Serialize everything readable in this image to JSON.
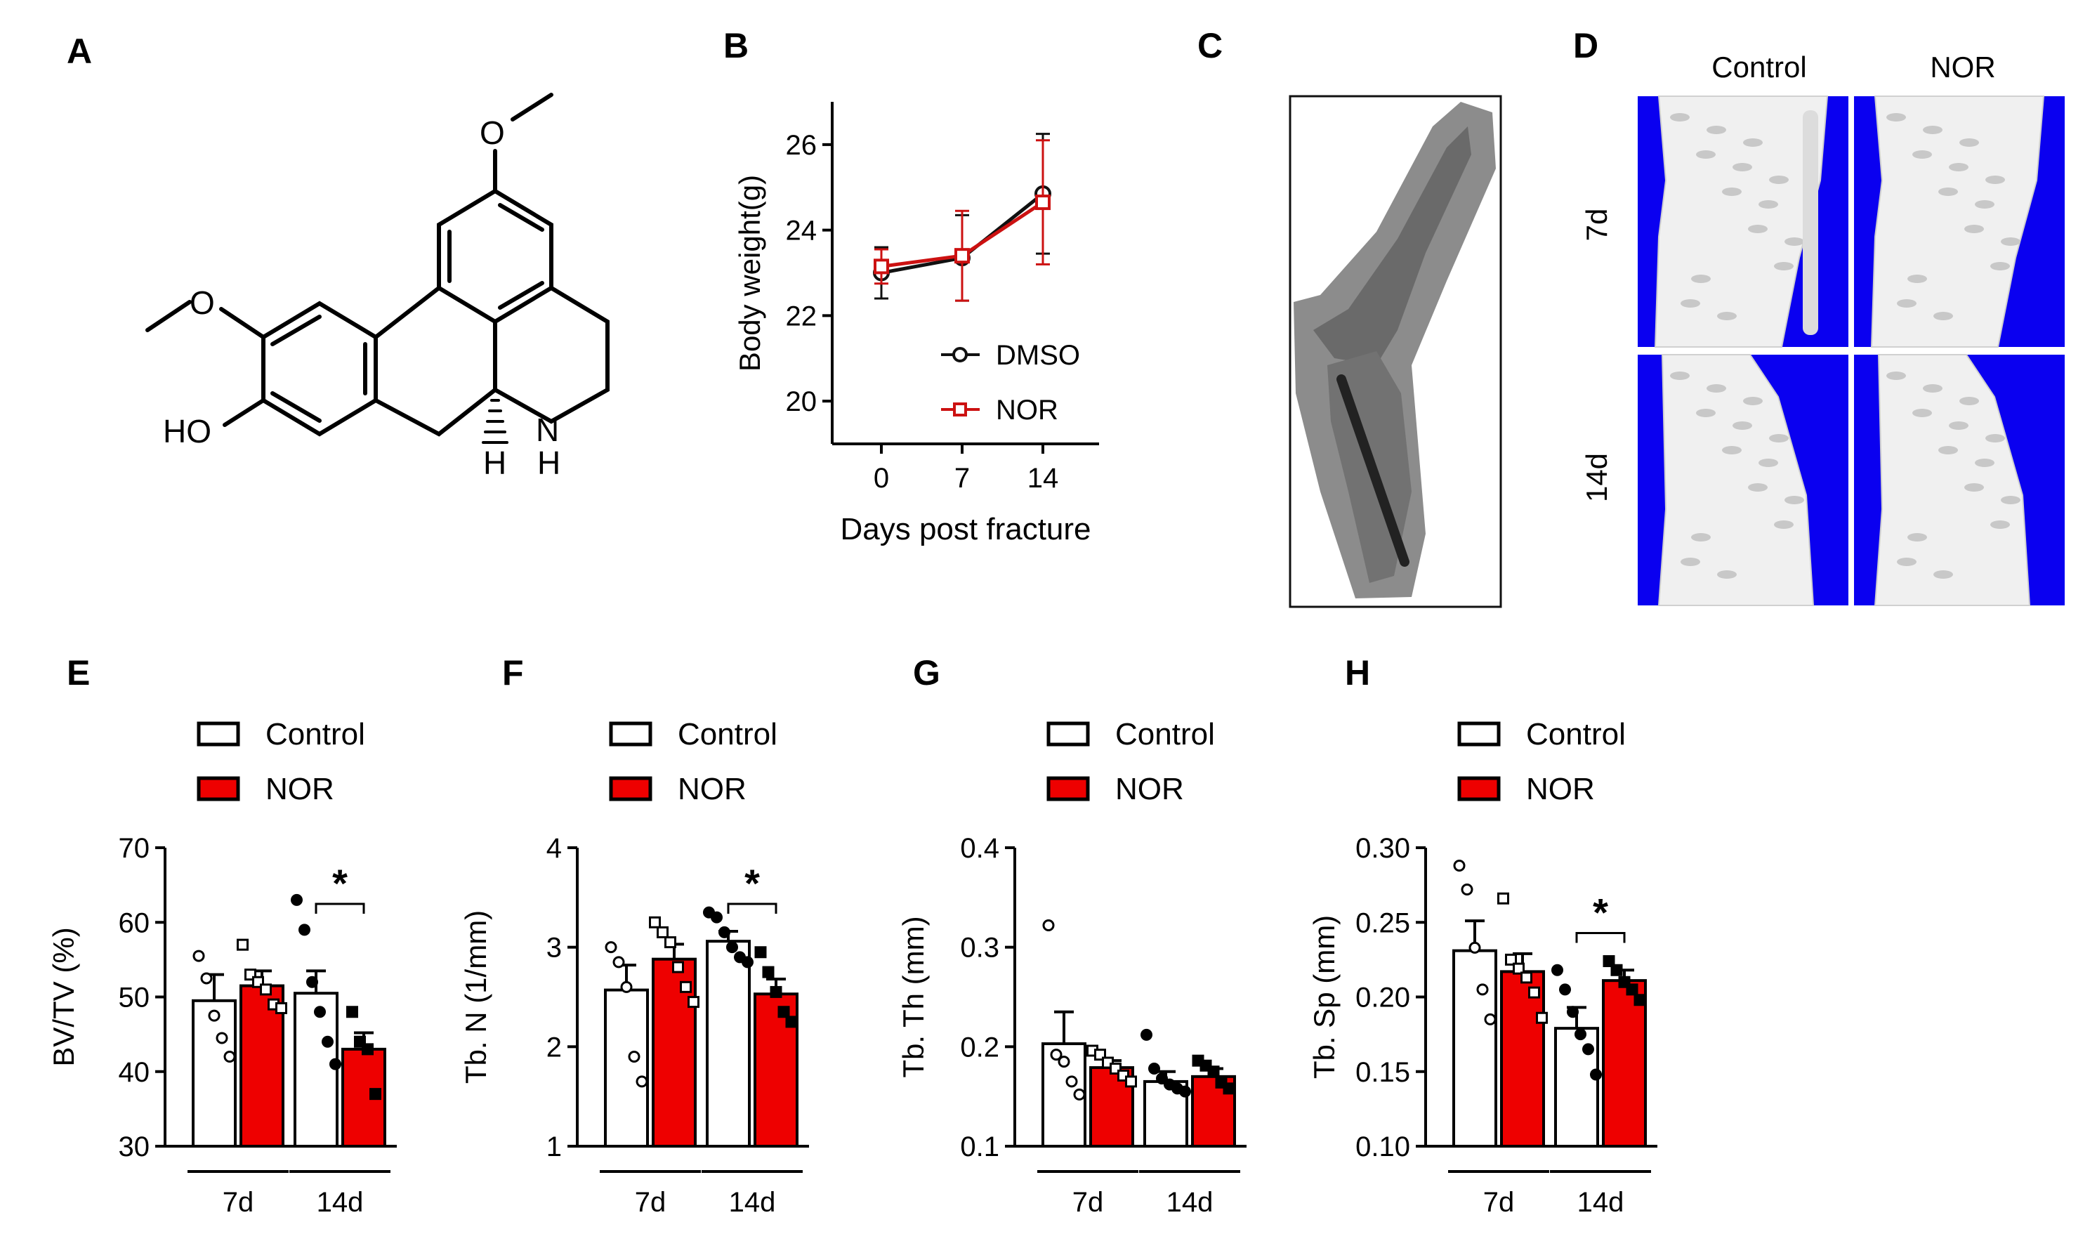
{
  "panel_labels": {
    "A": "A",
    "B": "B",
    "C": "C",
    "D": "D",
    "E": "E",
    "F": "F",
    "G": "G",
    "H": "H"
  },
  "structure": {
    "ho": "HO",
    "nh": "N",
    "h_nh": "H",
    "h_stereo": "H",
    "o_top": "O",
    "o_left": "O"
  },
  "micro_ct": {
    "col_control": "Control",
    "col_nor": "NOR",
    "row_7d": "7d",
    "row_14d": "14d",
    "bg_color": "#0a00f0"
  },
  "colors": {
    "control": "#ffffff",
    "nor": "#ee0000",
    "dmso_line": "#111111",
    "nor_line": "#cc1111"
  },
  "chart_data": [
    {
      "id": "B",
      "type": "line",
      "xlabel": "Days post fracture",
      "ylabel": "Body weight(g)",
      "x": [
        0,
        7,
        14
      ],
      "xticks": [
        "0",
        "7",
        "14"
      ],
      "ylim": [
        19,
        27
      ],
      "yticks": [
        20,
        22,
        24,
        26
      ],
      "series": [
        {
          "name": "DMSO",
          "values": [
            23.0,
            23.35,
            24.85
          ],
          "err": [
            0.6,
            1.0,
            1.4
          ],
          "marker": "circle"
        },
        {
          "name": "NOR",
          "values": [
            23.15,
            23.4,
            24.65
          ],
          "err": [
            0.4,
            1.05,
            1.45
          ],
          "marker": "square"
        }
      ]
    },
    {
      "id": "E",
      "type": "bar",
      "ylabel": "BV/TV (%)",
      "ylim": [
        30,
        70
      ],
      "yticks": [
        30,
        40,
        50,
        60,
        70
      ],
      "groups": [
        "7d",
        "14d"
      ],
      "legend": [
        "Control",
        "NOR"
      ],
      "bars": [
        {
          "group": "7d",
          "series": "Control",
          "mean": 49.5,
          "sem": 3.5,
          "points": [
            55.5,
            52.5,
            47.5,
            44.5,
            42.0
          ]
        },
        {
          "group": "7d",
          "series": "NOR",
          "mean": 51.5,
          "sem": 2.0,
          "points": [
            57.0,
            53.0,
            52.0,
            51.0,
            49.0,
            48.5
          ]
        },
        {
          "group": "14d",
          "series": "Control",
          "mean": 50.5,
          "sem": 3.0,
          "points": [
            63.0,
            59.0,
            52.0,
            48.0,
            44.0,
            41.0
          ]
        },
        {
          "group": "14d",
          "series": "NOR",
          "mean": 43.0,
          "sem": 2.2,
          "points": [
            48.0,
            44.0,
            43.0,
            37.0
          ]
        }
      ],
      "significance": {
        "between": "14d",
        "label": "*"
      }
    },
    {
      "id": "F",
      "type": "bar",
      "ylabel": "Tb. N (1/mm)",
      "ylim": [
        1,
        4
      ],
      "yticks": [
        1,
        2,
        3,
        4
      ],
      "groups": [
        "7d",
        "14d"
      ],
      "legend": [
        "Control",
        "NOR"
      ],
      "bars": [
        {
          "group": "7d",
          "series": "Control",
          "mean": 2.57,
          "sem": 0.25,
          "points": [
            3.0,
            2.85,
            2.6,
            1.9,
            1.65
          ]
        },
        {
          "group": "7d",
          "series": "NOR",
          "mean": 2.88,
          "sem": 0.15,
          "points": [
            3.25,
            3.15,
            3.05,
            2.8,
            2.6,
            2.45
          ]
        },
        {
          "group": "14d",
          "series": "Control",
          "mean": 3.06,
          "sem": 0.1,
          "points": [
            3.35,
            3.3,
            3.15,
            3.0,
            2.9,
            2.85
          ]
        },
        {
          "group": "14d",
          "series": "NOR",
          "mean": 2.53,
          "sem": 0.15,
          "points": [
            2.95,
            2.75,
            2.55,
            2.35,
            2.25
          ]
        }
      ],
      "significance": {
        "between": "14d",
        "label": "*"
      }
    },
    {
      "id": "G",
      "type": "bar",
      "ylabel": "Tb. Th (mm)",
      "ylim": [
        0.1,
        0.4
      ],
      "yticks": [
        "0.1",
        "0.2",
        "0.3",
        "0.4"
      ],
      "groups": [
        "7d",
        "14d"
      ],
      "legend": [
        "Control",
        "NOR"
      ],
      "bars": [
        {
          "group": "7d",
          "series": "Control",
          "mean": 0.203,
          "sem": 0.032,
          "points": [
            0.322,
            0.192,
            0.185,
            0.165,
            0.152
          ]
        },
        {
          "group": "7d",
          "series": "NOR",
          "mean": 0.179,
          "sem": 0.007,
          "points": [
            0.196,
            0.192,
            0.184,
            0.178,
            0.171,
            0.165
          ]
        },
        {
          "group": "14d",
          "series": "Control",
          "mean": 0.165,
          "sem": 0.01,
          "points": [
            0.212,
            0.178,
            0.168,
            0.162,
            0.158,
            0.155
          ]
        },
        {
          "group": "14d",
          "series": "NOR",
          "mean": 0.17,
          "sem": 0.008,
          "points": [
            0.186,
            0.181,
            0.175,
            0.164,
            0.158
          ]
        }
      ],
      "significance": null
    },
    {
      "id": "H",
      "type": "bar",
      "ylabel": "Tb. Sp (mm)",
      "ylim": [
        0.1,
        0.3
      ],
      "yticks": [
        "0.10",
        "0.15",
        "0.20",
        "0.25",
        "0.30"
      ],
      "groups": [
        "7d",
        "14d"
      ],
      "legend": [
        "Control",
        "NOR"
      ],
      "bars": [
        {
          "group": "7d",
          "series": "Control",
          "mean": 0.231,
          "sem": 0.02,
          "points": [
            0.288,
            0.272,
            0.233,
            0.205,
            0.185
          ]
        },
        {
          "group": "7d",
          "series": "NOR",
          "mean": 0.217,
          "sem": 0.012,
          "points": [
            0.266,
            0.225,
            0.219,
            0.213,
            0.203,
            0.186
          ]
        },
        {
          "group": "14d",
          "series": "Control",
          "mean": 0.179,
          "sem": 0.014,
          "points": [
            0.218,
            0.205,
            0.19,
            0.175,
            0.165,
            0.148
          ]
        },
        {
          "group": "14d",
          "series": "NOR",
          "mean": 0.211,
          "sem": 0.007,
          "points": [
            0.224,
            0.218,
            0.21,
            0.205,
            0.198
          ]
        }
      ],
      "significance": {
        "between": "14d",
        "label": "*"
      }
    }
  ]
}
